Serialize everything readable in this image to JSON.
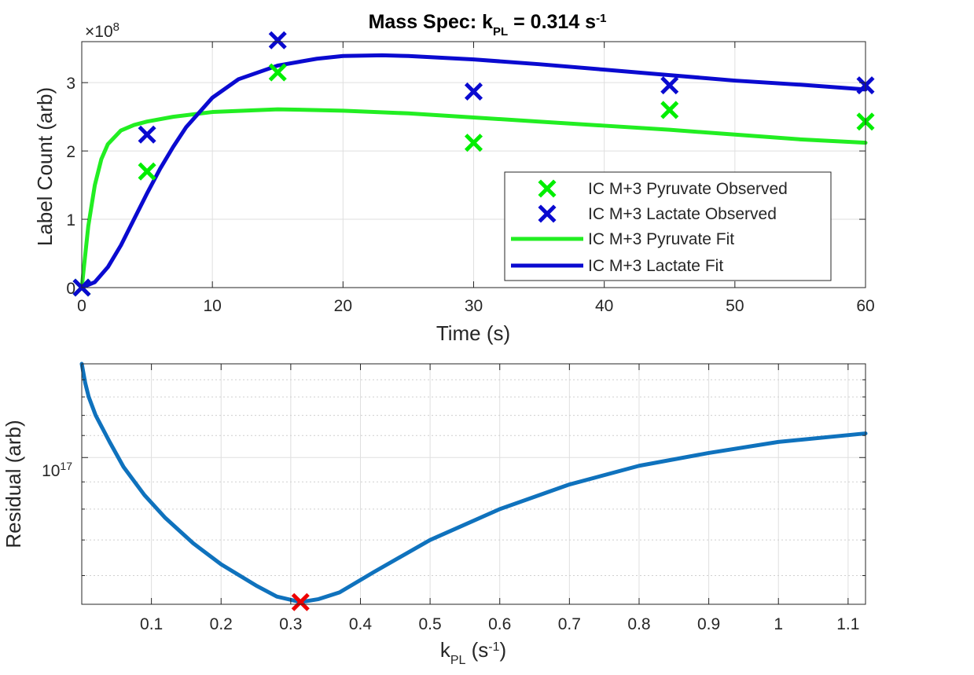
{
  "chart_data": [
    {
      "type": "line",
      "title": {
        "main": "Mass Spec: k",
        "sub": "PL",
        "mid": " = 0.314 s",
        "sup": "-1"
      },
      "xlabel": "Time (s)",
      "ylabel": "Label Count (arb)",
      "y_exponent_label": {
        "base": "×10",
        "exp": "8"
      },
      "xlim": [
        0,
        60
      ],
      "ylim": [
        0,
        3.6
      ],
      "y_multiplier": 100000000,
      "xticks": [
        0,
        10,
        20,
        30,
        40,
        50,
        60
      ],
      "xtick_labels": [
        "0",
        "10",
        "20",
        "30",
        "40",
        "50",
        "60"
      ],
      "yticks": [
        0,
        1,
        2,
        3
      ],
      "ytick_labels": [
        "0",
        "1",
        "2",
        "3"
      ],
      "grid": true,
      "legend_position": "bottom-right",
      "series": [
        {
          "name": "IC M+3 Pyruvate Observed",
          "kind": "marker",
          "color": "#00ee00",
          "x": [
            0,
            5,
            15,
            30,
            45,
            60
          ],
          "y": [
            0,
            1.7,
            3.15,
            2.12,
            2.6,
            2.43
          ]
        },
        {
          "name": "IC M+3 Lactate Observed",
          "kind": "marker",
          "color": "#0a0ad0",
          "x": [
            0,
            5,
            15,
            30,
            45,
            60
          ],
          "y": [
            0,
            2.24,
            3.62,
            2.87,
            2.96,
            2.96
          ]
        },
        {
          "name": "IC M+3 Pyruvate Fit",
          "kind": "line",
          "color": "#22ee22",
          "x": [
            0,
            0.5,
            1,
            1.5,
            2,
            3,
            4,
            5,
            7,
            10,
            15,
            20,
            25,
            30,
            35,
            40,
            45,
            50,
            55,
            60
          ],
          "y": [
            0,
            0.9,
            1.5,
            1.88,
            2.1,
            2.3,
            2.38,
            2.43,
            2.5,
            2.57,
            2.61,
            2.59,
            2.55,
            2.49,
            2.43,
            2.37,
            2.31,
            2.24,
            2.17,
            2.12
          ]
        },
        {
          "name": "IC M+3 Lactate Fit",
          "kind": "line",
          "color": "#0a0ad0",
          "x": [
            0,
            1,
            2,
            3,
            4,
            5,
            6,
            7,
            8,
            10,
            12,
            15,
            18,
            20,
            23,
            25,
            30,
            35,
            40,
            45,
            50,
            55,
            60
          ],
          "y": [
            0,
            0.08,
            0.3,
            0.62,
            1.0,
            1.38,
            1.74,
            2.06,
            2.35,
            2.78,
            3.05,
            3.25,
            3.35,
            3.39,
            3.4,
            3.39,
            3.34,
            3.27,
            3.19,
            3.11,
            3.03,
            2.97,
            2.9
          ]
        }
      ]
    },
    {
      "type": "line",
      "xlabel": {
        "main": "k",
        "sub": "PL",
        "mid": " (s",
        "sup": "-1",
        "end": ")"
      },
      "ylabel": "Residual (arb)",
      "y_scale": "log",
      "xlim": [
        0,
        1.125
      ],
      "ylim": [
        5.3e+16,
        1.5e+17
      ],
      "xticks": [
        0.1,
        0.2,
        0.3,
        0.4,
        0.5,
        0.6,
        0.7,
        0.8,
        0.9,
        1,
        1.1
      ],
      "xtick_labels": [
        "0.1",
        "0.2",
        "0.3",
        "0.4",
        "0.5",
        "0.6",
        "0.7",
        "0.8",
        "0.9",
        "1",
        "1.1"
      ],
      "ytick_major": {
        "value": 1e+17,
        "base": "10",
        "exp": "17"
      },
      "yticks_minor": [
        6e+16,
        7e+16,
        8e+16,
        9e+16,
        1.1e+17,
        1.2e+17,
        1.3e+17,
        1.4e+17
      ],
      "grid": true,
      "series": [
        {
          "name": "",
          "kind": "line",
          "color": "#0f72bd",
          "x": [
            0,
            0.005,
            0.01,
            0.02,
            0.04,
            0.06,
            0.09,
            0.12,
            0.16,
            0.2,
            0.25,
            0.28,
            0.314,
            0.34,
            0.37,
            0.42,
            0.5,
            0.6,
            0.7,
            0.8,
            0.9,
            1.0,
            1.125
          ],
          "y": [
            1.5e+17,
            1.38e+17,
            1.3e+17,
            1.2e+17,
            1.07e+17,
            9.6e+16,
            8.5e+16,
            7.7e+16,
            6.9e+16,
            6.3e+16,
            5.75e+16,
            5.48e+16,
            5.35e+16,
            5.42e+16,
            5.58e+16,
            6.1e+16,
            7e+16,
            8e+16,
            8.9e+16,
            9.65e+16,
            1.02e+17,
            1.07e+17,
            1.11e+17
          ]
        },
        {
          "name": "",
          "kind": "marker",
          "color": "#ee0000",
          "x": [
            0.314
          ],
          "y": [
            5.35e+16
          ]
        }
      ]
    }
  ]
}
